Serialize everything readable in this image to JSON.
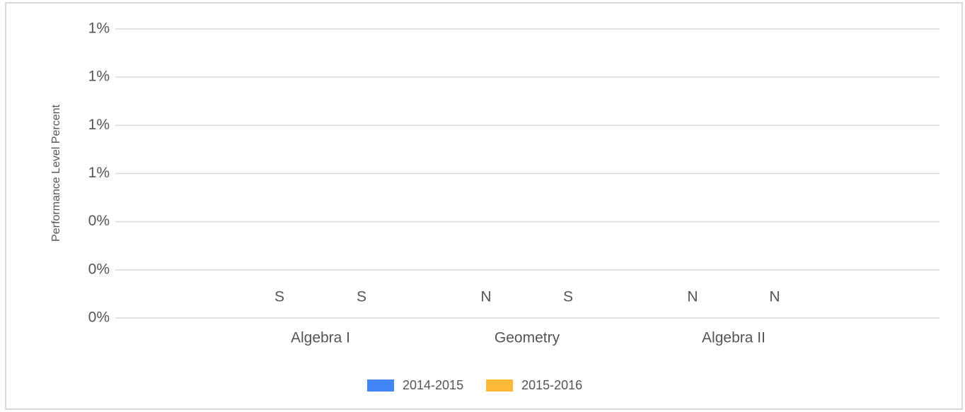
{
  "chart_data": {
    "type": "bar",
    "y_label": "Performance Level Percent",
    "categories": [
      "Algebra I",
      "Geometry",
      "Algebra II"
    ],
    "series": [
      {
        "name": "2014-2015",
        "color": "#4285f4",
        "values": [
          null,
          null,
          null
        ],
        "value_labels": [
          "S",
          "N",
          "N"
        ]
      },
      {
        "name": "2015-2016",
        "color": "#fbb839",
        "values": [
          null,
          null,
          null
        ],
        "value_labels": [
          "S",
          "S",
          "N"
        ]
      }
    ],
    "ylim": [
      0,
      1.2
    ],
    "yticks": [
      {
        "value": 0,
        "label": "0%"
      },
      {
        "value": 0.2,
        "label": "0%"
      },
      {
        "value": 0.4,
        "label": "0%"
      },
      {
        "value": 0.6,
        "label": "1%"
      },
      {
        "value": 0.8,
        "label": "1%"
      },
      {
        "value": 1.0,
        "label": "1%"
      },
      {
        "value": 1.2,
        "label": "1%"
      }
    ],
    "grid": true,
    "legend": "bottom"
  }
}
